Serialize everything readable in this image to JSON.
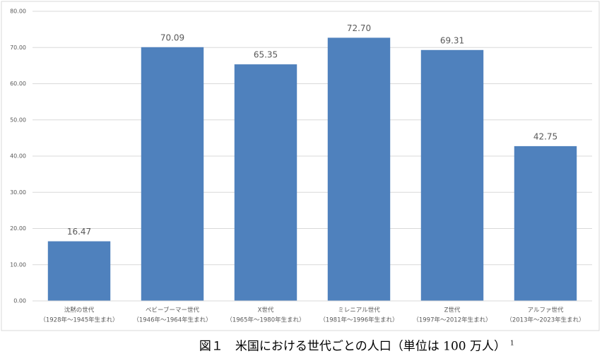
{
  "chart_data": {
    "type": "bar",
    "caption": "図１　米国における世代ごとの人口（単位は 100 万人）",
    "caption_note": "1",
    "categories": [
      "沈黙の世代",
      "ベビーブーマー世代",
      "X世代",
      "ミレニアル世代",
      "Z世代",
      "アルファ世代"
    ],
    "category_years": [
      "（1928年～1945年生まれ）",
      "（1946年～1964年生まれ）",
      "（1965年～1980年生まれ）",
      "（1981年～1996年生まれ）",
      "（1997年～2012年生まれ）",
      "（2013年～2023年生まれ）"
    ],
    "values": [
      16.47,
      70.09,
      65.35,
      72.7,
      69.31,
      42.75
    ],
    "value_labels": [
      "16.47",
      "70.09",
      "65.35",
      "72.70",
      "69.31",
      "42.75"
    ],
    "color": "#4f81bd",
    "ylim": [
      0,
      80
    ],
    "yticks": [
      {
        "value": 0,
        "label": "0.00"
      },
      {
        "value": 10,
        "label": "10.00"
      },
      {
        "value": 20,
        "label": "20.00"
      },
      {
        "value": 30,
        "label": "30.00"
      },
      {
        "value": 40,
        "label": "40.00"
      },
      {
        "value": 50,
        "label": "50.00"
      },
      {
        "value": 60,
        "label": "60.00"
      },
      {
        "value": 70,
        "label": "70.00"
      },
      {
        "value": 80,
        "label": "80.00"
      }
    ],
    "grid": true
  }
}
